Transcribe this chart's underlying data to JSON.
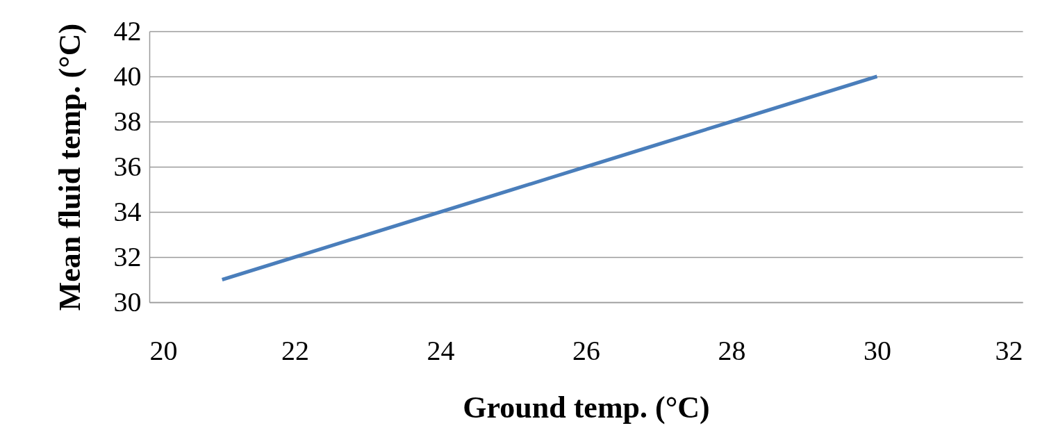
{
  "chart_data": {
    "type": "line",
    "xlabel": "Ground temp. (°C)",
    "ylabel": "Mean fluid temp. (°C)",
    "x": [
      21,
      22,
      23,
      24,
      25,
      26,
      27,
      28,
      29,
      30
    ],
    "series": [
      {
        "color": "#4a7ebb",
        "values": [
          31,
          32,
          33,
          34,
          35,
          36,
          37,
          38,
          39,
          40
        ]
      }
    ],
    "xlim": [
      20,
      32
    ],
    "xticks": [
      20,
      22,
      24,
      26,
      28,
      30,
      32
    ],
    "ylim": [
      30,
      42
    ],
    "yticks": [
      30,
      32,
      34,
      36,
      38,
      40,
      42
    ],
    "grid": "y"
  }
}
